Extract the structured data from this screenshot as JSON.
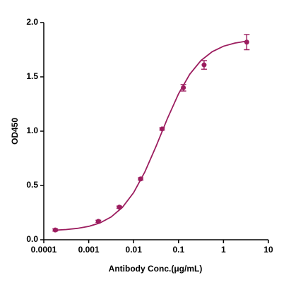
{
  "chart_data": {
    "type": "scatter",
    "x_label": "Antibody Conc.(μg/mL)",
    "y_label": "OD450",
    "log_x": true,
    "color": "#9c1d5f",
    "x": [
      0.00018,
      0.00164,
      0.0048,
      0.0143,
      0.043,
      0.128,
      0.37,
      3.3
    ],
    "values": [
      0.09,
      0.17,
      0.3,
      0.56,
      1.02,
      1.4,
      1.61,
      1.82
    ],
    "errors": [
      0.01,
      0.01,
      0.01,
      0.01,
      0.01,
      0.03,
      0.04,
      0.07
    ],
    "fit": {
      "x": [
        0.000178,
        0.000316,
        0.000562,
        0.001,
        0.00178,
        0.00316,
        0.00562,
        0.01,
        0.0178,
        0.0316,
        0.0562,
        0.1,
        0.178,
        0.316,
        0.562,
        1,
        1.78,
        3.16
      ],
      "values": [
        0.088,
        0.094,
        0.105,
        0.123,
        0.155,
        0.21,
        0.298,
        0.434,
        0.625,
        0.861,
        1.114,
        1.344,
        1.525,
        1.651,
        1.732,
        1.782,
        1.811,
        1.828
      ]
    },
    "xlim": [
      0.0001,
      10
    ],
    "xticks": [
      0.0001,
      0.001,
      0.01,
      0.1,
      1,
      10
    ],
    "ylim": [
      0,
      2
    ],
    "yticks": [
      {
        "value": 0,
        "label": "0.0"
      },
      {
        "value": 0.5,
        "label": "0.5"
      },
      {
        "value": 1,
        "label": "1.0"
      },
      {
        "value": 1.5,
        "label": "1.5"
      },
      {
        "value": 2,
        "label": "2.0"
      }
    ]
  }
}
